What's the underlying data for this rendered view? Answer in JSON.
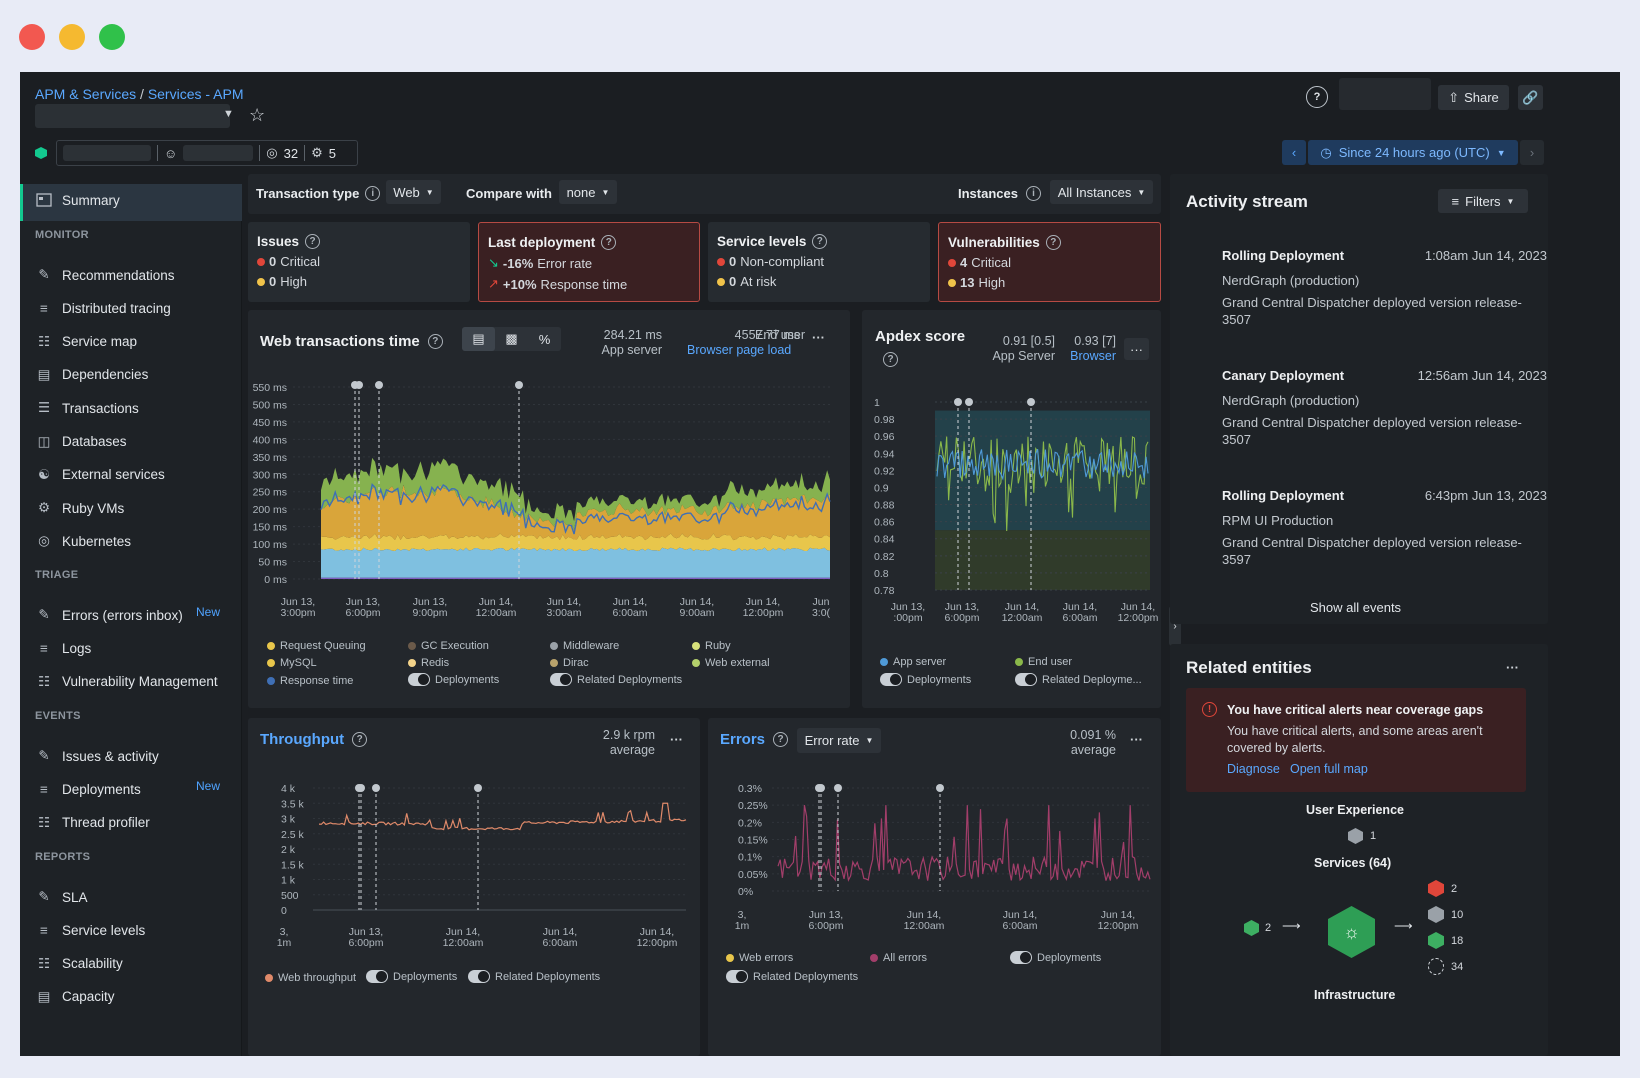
{
  "window": {
    "buttons": [
      "close",
      "minimize",
      "maximize"
    ]
  },
  "breadcrumb": {
    "items": [
      "APM & Services",
      "Services - APM"
    ],
    "separator": "/"
  },
  "header": {
    "tag_count": "32",
    "settings_count": "5",
    "share_label": "Share",
    "time_range": "Since 24 hours ago (UTC)"
  },
  "sidebar": {
    "summary": "Summary",
    "sections": {
      "monitor": "MONITOR",
      "triage": "TRIAGE",
      "events": "EVENTS",
      "reports": "REPORTS"
    },
    "monitor": [
      "Recommendations",
      "Distributed tracing",
      "Service map",
      "Dependencies",
      "Transactions",
      "Databases",
      "External services",
      "Ruby VMs",
      "Kubernetes"
    ],
    "triage": [
      "Errors (errors inbox)",
      "Logs",
      "Vulnerability Management"
    ],
    "events": [
      "Issues & activity",
      "Deployments",
      "Thread profiler"
    ],
    "reports": [
      "SLA",
      "Service levels",
      "Scalability",
      "Capacity"
    ],
    "new_badge": "New"
  },
  "filters": {
    "transaction_type_label": "Transaction type",
    "transaction_type": "Web",
    "compare_label": "Compare with",
    "compare": "none",
    "instances_label": "Instances",
    "instances": "All Instances"
  },
  "kpis": {
    "issues": {
      "title": "Issues",
      "critical": "0",
      "critical_label": "Critical",
      "high": "0",
      "high_label": "High"
    },
    "deployment": {
      "title": "Last deployment",
      "error_rate": "-16%",
      "error_rate_label": "Error rate",
      "response": "+10%",
      "response_label": "Response time"
    },
    "service_levels": {
      "title": "Service levels",
      "noncompliant": "0",
      "noncompliant_label": "Non-compliant",
      "at_risk": "0",
      "at_risk_label": "At risk"
    },
    "vulnerabilities": {
      "title": "Vulnerabilities",
      "critical": "4",
      "critical_label": "Critical",
      "high": "13",
      "high_label": "High"
    }
  },
  "web": {
    "title": "Web transactions time",
    "app_value": "284.21 ms",
    "app_label": "App server",
    "browser_value": "4557.77 ms",
    "browser_label": "End user",
    "browser_link": "Browser page load",
    "legend": [
      "Request Queuing",
      "GC Execution",
      "Middleware",
      "Ruby",
      "MySQL",
      "Redis",
      "Dirac",
      "Web external",
      "Response time"
    ],
    "toggle_deploy": "Deployments",
    "toggle_related": "Related Deployments"
  },
  "apdex": {
    "title": "Apdex score",
    "app_value": "0.91 [0.5]",
    "app_label": "App Server",
    "browser_value": "0.93 [7]",
    "browser_label": "Browser",
    "legend": [
      "App server",
      "End user"
    ],
    "toggle_deploy": "Deployments",
    "toggle_related": "Related Deployme..."
  },
  "throughput": {
    "title": "Throughput",
    "value": "2.9 k rpm",
    "sub": "average",
    "legend": "Web throughput",
    "toggle_deploy": "Deployments",
    "toggle_related": "Related Deployments"
  },
  "errors": {
    "title": "Errors",
    "dropdown": "Error rate",
    "value": "0.091 %",
    "sub": "average",
    "legend": [
      "Web errors",
      "All errors"
    ],
    "toggle_deploy": "Deployments",
    "toggle_related": "Related Deployments"
  },
  "chart_data": [
    {
      "type": "area",
      "title": "Web transactions time",
      "ylim": [
        0,
        550
      ],
      "yticks": [
        "550 ms",
        "500 ms",
        "450 ms",
        "400 ms",
        "350 ms",
        "300 ms",
        "250 ms",
        "200 ms",
        "150 ms",
        "100 ms",
        "50 ms",
        "0 ms"
      ],
      "xticks": [
        "Jun 13,|3:00pm",
        "Jun 13,|6:00pm",
        "Jun 13,|9:00pm",
        "Jun 14,|12:00am",
        "Jun 14,|3:00am",
        "Jun 14,|6:00am",
        "Jun 14,|9:00am",
        "Jun 14,|12:00pm",
        "Jun|3:0("
      ],
      "series": [
        {
          "name": "Response time",
          "values": [
            90,
            90,
            90,
            90,
            90,
            90,
            90,
            90
          ]
        },
        {
          "name": "MySQL",
          "values": [
            120,
            115,
            110,
            105,
            100,
            100,
            105,
            110
          ]
        },
        {
          "name": "Ruby",
          "values": [
            200,
            120,
            110,
            90,
            80,
            85,
            95,
            120
          ]
        }
      ]
    },
    {
      "type": "line",
      "title": "Apdex score",
      "ylim": [
        0.78,
        1
      ],
      "yticks": [
        "1",
        "0.98",
        "0.96",
        "0.94",
        "0.92",
        "0.9",
        "0.88",
        "0.86",
        "0.84",
        "0.82",
        "0.8",
        "0.78"
      ],
      "xticks": [
        "Jun 13,|:00pm",
        "Jun 13,|6:00pm",
        "Jun 14,|12:00am",
        "Jun 14,|6:00am",
        "Jun 14,|12:00pm"
      ]
    },
    {
      "type": "line",
      "title": "Throughput",
      "ylim": [
        0,
        4000
      ],
      "yticks": [
        "4 k",
        "3.5 k",
        "3 k",
        "2.5 k",
        "2 k",
        "1.5 k",
        "1 k",
        "500",
        "0"
      ],
      "xticks": [
        "3,|1m",
        "Jun 13,|6:00pm",
        "Jun 14,|12:00am",
        "Jun 14,|6:00am",
        "Jun 14,|12:00pm"
      ]
    },
    {
      "type": "line",
      "title": "Errors",
      "ylim": [
        0,
        0.3
      ],
      "yticks": [
        "0.3%",
        "0.25%",
        "0.2%",
        "0.15%",
        "0.1%",
        "0.05%",
        "0%"
      ],
      "xticks": [
        "3,|1m",
        "Jun 13,|6:00pm",
        "Jun 14,|12:00am",
        "Jun 14,|6:00am",
        "Jun 14,|12:00pm"
      ]
    }
  ],
  "activity": {
    "title": "Activity stream",
    "filters": "Filters",
    "show_all": "Show all events",
    "events": [
      {
        "title": "Rolling Deployment",
        "time": "1:08am Jun 14, 2023",
        "source": "NerdGraph (production)",
        "desc": "Grand Central Dispatcher deployed version release-3507"
      },
      {
        "title": "Canary Deployment",
        "time": "12:56am Jun 14, 2023",
        "source": "NerdGraph (production)",
        "desc": "Grand Central Dispatcher deployed version release-3507"
      },
      {
        "title": "Rolling Deployment",
        "time": "6:43pm Jun 13, 2023",
        "source": "RPM UI Production",
        "desc": "Grand Central Dispatcher deployed version release-3597"
      }
    ]
  },
  "related": {
    "title": "Related entities",
    "alert_title": "You have critical alerts near coverage gaps",
    "alert_body": "You have critical alerts, and some areas aren't covered by alerts.",
    "diagnose": "Diagnose",
    "open_map": "Open full map",
    "user_exp": "User Experience",
    "user_exp_count": "1",
    "services": "Services (64)",
    "left_count": "2",
    "right_counts": [
      "2",
      "10",
      "18",
      "34"
    ],
    "infra": "Infrastructure"
  },
  "colors": {
    "accent": "#13c98f",
    "link": "#5aa8ff",
    "critical": "#e0463a",
    "warning": "#f0c34a"
  }
}
